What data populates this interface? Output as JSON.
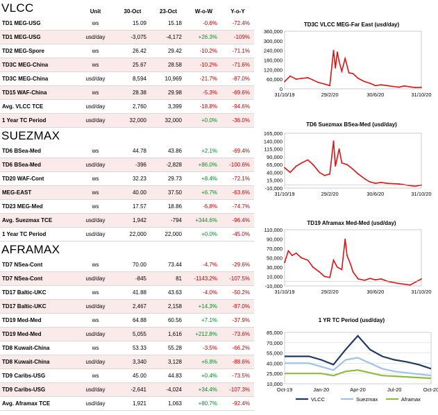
{
  "headers": {
    "unit": "Unit",
    "d1": "30-Oct",
    "d2": "23-Oct",
    "wow": "W-o-W",
    "yoy": "Y-o-Y"
  },
  "sections": [
    {
      "title": "VLCC",
      "rows": [
        {
          "route": "TD1 MEG-USG",
          "unit": "ws",
          "d1": "15.09",
          "d2": "15.18",
          "wow": "-0.6%",
          "yoy": "-72.4%"
        },
        {
          "route": "TD1 MEG-USG",
          "unit": "usd/day",
          "d1": "-3,075",
          "d2": "-4,172",
          "wow": "+26.3%",
          "yoy": "-109%"
        },
        {
          "route": "TD2 MEG-Spore",
          "unit": "ws",
          "d1": "26.42",
          "d2": "29.42",
          "wow": "-10.2%",
          "yoy": "-71.1%"
        },
        {
          "route": "TD3C MEG-China",
          "unit": "ws",
          "d1": "25.67",
          "d2": "28.58",
          "wow": "-10.2%",
          "yoy": "-71.6%"
        },
        {
          "route": "TD3C MEG-China",
          "unit": "usd/day",
          "d1": "8,594",
          "d2": "10,969",
          "wow": "-21.7%",
          "yoy": "-87.0%"
        },
        {
          "route": "TD15 WAF-China",
          "unit": "ws",
          "d1": "28.38",
          "d2": "29.98",
          "wow": "-5.3%",
          "yoy": "-69.6%"
        },
        {
          "route": "Avg. VLCC TCE",
          "unit": "usd/day",
          "d1": "2,760",
          "d2": "3,399",
          "wow": "-18.8%",
          "yoy": "-94.6%"
        },
        {
          "route": "1 Year TC Period",
          "unit": "usd/day",
          "d1": "32,000",
          "d2": "32,000",
          "wow": "+0.0%",
          "yoy": "-36.0%"
        }
      ]
    },
    {
      "title": "SUEZMAX",
      "rows": [
        {
          "route": "TD6 BSea-Med",
          "unit": "ws",
          "d1": "44.78",
          "d2": "43.86",
          "wow": "+2.1%",
          "yoy": "-69.4%"
        },
        {
          "route": "TD6 BSea-Med",
          "unit": "usd/day",
          "d1": "-396",
          "d2": "-2,828",
          "wow": "+86.0%",
          "yoy": "-100.6%"
        },
        {
          "route": "TD20 WAF-Cont",
          "unit": "ws",
          "d1": "32.23",
          "d2": "29.73",
          "wow": "+8.4%",
          "yoy": "-72.1%"
        },
        {
          "route": "MEG-EAST",
          "unit": "ws",
          "d1": "40.00",
          "d2": "37.50",
          "wow": "+6.7%",
          "yoy": "-63.6%"
        },
        {
          "route": "TD23 MEG-Med",
          "unit": "ws",
          "d1": "17.57",
          "d2": "18.86",
          "wow": "-6.8%",
          "yoy": "-74.7%"
        },
        {
          "route": "Avg. Suezmax TCE",
          "unit": "usd/day",
          "d1": "1,942",
          "d2": "-794",
          "wow": "+344.6%",
          "yoy": "-96.4%"
        },
        {
          "route": "1 Year TC Period",
          "unit": "usd/day",
          "d1": "22,000",
          "d2": "22,000",
          "wow": "+0.0%",
          "yoy": "-45.0%"
        }
      ]
    },
    {
      "title": "AFRAMAX",
      "rows": [
        {
          "route": "TD7 NSea-Cont",
          "unit": "ws",
          "d1": "70.00",
          "d2": "73.44",
          "wow": "-4.7%",
          "yoy": "-29.6%"
        },
        {
          "route": "TD7 NSea-Cont",
          "unit": "usd/day",
          "d1": "-845",
          "d2": "81",
          "wow": "-1143.2%",
          "yoy": "-107.5%"
        },
        {
          "route": "TD17 Baltic-UKC",
          "unit": "ws",
          "d1": "41.88",
          "d2": "43.63",
          "wow": "-4.0%",
          "yoy": "-50.2%"
        },
        {
          "route": "TD17 Baltic-UKC",
          "unit": "usd/day",
          "d1": "2,467",
          "d2": "2,158",
          "wow": "+14.3%",
          "yoy": "-87.0%"
        },
        {
          "route": "TD19 Med-Med",
          "unit": "ws",
          "d1": "64.88",
          "d2": "60.56",
          "wow": "+7.1%",
          "yoy": "-37.9%"
        },
        {
          "route": "TD19 Med-Med",
          "unit": "usd/day",
          "d1": "5,055",
          "d2": "1,616",
          "wow": "+212.8%",
          "yoy": "-73.6%"
        },
        {
          "route": "TD8 Kuwait-China",
          "unit": "ws",
          "d1": "53.33",
          "d2": "55.28",
          "wow": "-3.5%",
          "yoy": "-66.2%"
        },
        {
          "route": "TD8 Kuwait-China",
          "unit": "usd/day",
          "d1": "3,340",
          "d2": "3,128",
          "wow": "+6.8%",
          "yoy": "-88.6%"
        },
        {
          "route": "TD9 Caribs-USG",
          "unit": "ws",
          "d1": "45.00",
          "d2": "44.83",
          "wow": "+0.4%",
          "yoy": "-73.5%"
        },
        {
          "route": "TD9 Caribs-USG",
          "unit": "usd/day",
          "d1": "-2,641",
          "d2": "-4,024",
          "wow": "+34.4%",
          "yoy": "-107.3%"
        },
        {
          "route": "Avg. Aframax TCE",
          "unit": "usd/day",
          "d1": "1,921",
          "d2": "1,063",
          "wow": "+80.7%",
          "yoy": "-92.4%"
        }
      ]
    }
  ],
  "colors": {
    "red": "#e01010",
    "pos": "#0a8a2a",
    "neg": "#c00000",
    "vlcc": "#1f3864",
    "suezmax": "#9dc3e6",
    "aframax": "#8fbc3f"
  },
  "chart_data": [
    {
      "type": "line",
      "title": "TD3C VLCC MEG-Far East (usd/day)",
      "x": [
        "31/10/19",
        "15/11/19",
        "1/12/19",
        "15/12/19",
        "1/1/20",
        "15/1/20",
        "29/1/20",
        "15/2/20",
        "29/2/20",
        "10/3/20",
        "15/3/20",
        "20/3/20",
        "25/3/20",
        "1/4/20",
        "10/4/20",
        "20/4/20",
        "1/5/20",
        "15/5/20",
        "1/6/20",
        "15/6/20",
        "30/6/20",
        "15/7/20",
        "1/8/20",
        "15/8/20",
        "1/9/20",
        "15/9/20",
        "1/10/20",
        "15/10/20",
        "31/10/20"
      ],
      "y": [
        45000,
        80000,
        60000,
        65000,
        70000,
        55000,
        40000,
        30000,
        20000,
        240000,
        130000,
        230000,
        170000,
        110000,
        190000,
        100000,
        95000,
        65000,
        45000,
        35000,
        20000,
        25000,
        20000,
        15000,
        10000,
        18000,
        12000,
        8000,
        9000
      ],
      "ylim": [
        0,
        360000
      ],
      "yticks": [
        "0",
        "60,000",
        "120,000",
        "180,000",
        "240,000",
        "300,000",
        "360,000"
      ],
      "xticks": [
        "31/10/19",
        "29/2/20",
        "30/6/20",
        "31/10/20"
      ]
    },
    {
      "type": "line",
      "title": "TD6 Suezmax BSea-Med (usd/day)",
      "x": [
        "31/10/19",
        "15/11/19",
        "1/12/19",
        "15/12/19",
        "1/1/20",
        "15/1/20",
        "1/2/20",
        "15/2/20",
        "29/2/20",
        "10/3/20",
        "15/3/20",
        "25/3/20",
        "1/4/20",
        "15/4/20",
        "1/5/20",
        "15/5/20",
        "1/6/20",
        "15/6/20",
        "30/6/20",
        "15/7/20",
        "1/8/20",
        "1/9/20",
        "1/10/20",
        "15/10/20",
        "31/10/20"
      ],
      "y": [
        55000,
        40000,
        60000,
        70000,
        80000,
        65000,
        40000,
        30000,
        35000,
        140000,
        60000,
        115000,
        70000,
        65000,
        50000,
        35000,
        20000,
        10000,
        5000,
        8000,
        5000,
        3000,
        -2000,
        -4000,
        -400
      ],
      "ylim": [
        -10000,
        165000
      ],
      "yticks": [
        "-10,000",
        "15,000",
        "40,000",
        "65,000",
        "90,000",
        "115,000",
        "140,000",
        "165,000"
      ],
      "xticks": [
        "31/10/19",
        "29/2/20",
        "30/6/20",
        "31/10/20"
      ]
    },
    {
      "type": "line",
      "title": "TD19 Aframax Med-Med (usd/day)",
      "x": [
        "31/10/19",
        "10/11/19",
        "20/11/19",
        "1/12/19",
        "15/12/19",
        "1/1/20",
        "15/1/20",
        "1/2/20",
        "15/2/20",
        "29/2/20",
        "10/3/20",
        "20/3/20",
        "1/4/20",
        "10/4/20",
        "15/4/20",
        "25/4/20",
        "1/5/20",
        "15/5/20",
        "1/6/20",
        "15/6/20",
        "30/6/20",
        "15/7/20",
        "1/8/20",
        "1/9/20",
        "1/10/20",
        "31/10/20"
      ],
      "y": [
        40000,
        65000,
        55000,
        60000,
        50000,
        45000,
        30000,
        20000,
        10000,
        8000,
        45000,
        30000,
        25000,
        90000,
        55000,
        35000,
        20000,
        5000,
        2000,
        6000,
        3000,
        5000,
        0,
        -5000,
        -8000,
        5000
      ],
      "ylim": [
        -10000,
        110000
      ],
      "yticks": [
        "-10,000",
        "10,000",
        "30,000",
        "50,000",
        "70,000",
        "90,000",
        "110,000"
      ],
      "xticks": [
        "31/10/19",
        "29/2/20",
        "30/6/20",
        "31/10/20"
      ]
    },
    {
      "type": "line",
      "title": "1 YR TC Period (usd/day)",
      "x": [
        "Oct-19",
        "Nov-19",
        "Dec-19",
        "Jan-20",
        "Feb-20",
        "Mar-20",
        "Apr-20",
        "May-20",
        "Jun-20",
        "Jul-20",
        "Aug-20",
        "Sep-20",
        "Oct-20"
      ],
      "series": [
        {
          "name": "VLCC",
          "values": [
            50000,
            50000,
            50000,
            45000,
            38000,
            60000,
            80000,
            60000,
            50000,
            45000,
            42000,
            38000,
            32000
          ]
        },
        {
          "name": "Suezmax",
          "values": [
            40000,
            40000,
            40000,
            35000,
            30000,
            45000,
            48000,
            40000,
            32000,
            28000,
            26000,
            24000,
            22000
          ]
        },
        {
          "name": "Aframax",
          "values": [
            25000,
            25000,
            25000,
            25000,
            22000,
            28000,
            30000,
            26000,
            22000,
            21000,
            20000,
            19000,
            18000
          ]
        }
      ],
      "ylim": [
        10000,
        85000
      ],
      "yticks": [
        "10,000",
        "25,000",
        "40,000",
        "55,000",
        "70,000",
        "85,000"
      ],
      "xticks": [
        "Oct-19",
        "Jan-20",
        "Apr-20",
        "Jul-20",
        "Oct-20"
      ]
    }
  ]
}
